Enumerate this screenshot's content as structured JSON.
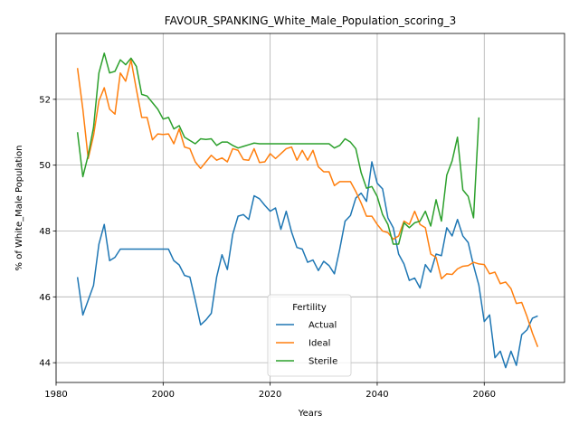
{
  "chart_data": {
    "type": "line",
    "title": "FAVOUR_SPANKING_White_Male_Population_scoring_3",
    "xlabel": "Years",
    "ylabel": "% of White_Male Population",
    "xlim": [
      1980,
      2075
    ],
    "ylim": [
      43.4,
      54.0
    ],
    "xticks": [
      1980,
      2000,
      2020,
      2040,
      2060
    ],
    "yticks": [
      44,
      46,
      48,
      50,
      52
    ],
    "grid": true,
    "legend": {
      "title": "Fertility",
      "placement": "lower-center"
    },
    "x": [
      1984,
      1985,
      1986,
      1987,
      1988,
      1989,
      1990,
      1991,
      1992,
      1993,
      1994,
      1995,
      1996,
      1997,
      1998,
      1999,
      2000,
      2001,
      2002,
      2003,
      2004,
      2005,
      2006,
      2007,
      2008,
      2009,
      2010,
      2011,
      2012,
      2013,
      2014,
      2015,
      2016,
      2017,
      2018,
      2019,
      2020,
      2021,
      2022,
      2023,
      2024,
      2025,
      2026,
      2027,
      2028,
      2029,
      2030,
      2031,
      2032,
      2033,
      2034,
      2035,
      2036,
      2037,
      2038,
      2039,
      2040,
      2041,
      2042,
      2043,
      2044,
      2045,
      2046,
      2047,
      2048,
      2049,
      2050,
      2051,
      2052,
      2053,
      2054,
      2055,
      2056,
      2057,
      2058,
      2059,
      2060,
      2061,
      2062,
      2063,
      2064,
      2065,
      2066,
      2067,
      2068,
      2069,
      2070
    ],
    "series": [
      {
        "name": "Actual",
        "color": "#1f77b4",
        "values": [
          46.6,
          45.45,
          45.9,
          46.35,
          47.6,
          48.2,
          47.1,
          47.2,
          47.45,
          47.45,
          47.45,
          47.45,
          47.45,
          47.45,
          47.45,
          47.45,
          47.45,
          47.45,
          47.1,
          46.97,
          46.65,
          46.6,
          45.9,
          45.15,
          45.3,
          45.5,
          46.6,
          47.28,
          46.83,
          47.9,
          48.45,
          48.5,
          48.35,
          49.07,
          48.98,
          48.78,
          48.6,
          48.7,
          48.05,
          48.6,
          47.97,
          47.5,
          47.45,
          47.05,
          47.12,
          46.8,
          47.08,
          46.95,
          46.7,
          47.45,
          48.3,
          48.47,
          49.0,
          49.15,
          48.9,
          50.1,
          49.45,
          49.28,
          48.4,
          48.1,
          47.3,
          47.0,
          46.5,
          46.57,
          46.27,
          46.98,
          46.75,
          47.3,
          47.25,
          48.1,
          47.85,
          48.35,
          47.85,
          47.65,
          46.95,
          46.35,
          45.25,
          45.45,
          44.15,
          44.35,
          43.85,
          44.35,
          43.92,
          44.85,
          45.0,
          45.35,
          45.42
        ]
      },
      {
        "name": "Ideal",
        "color": "#ff7f0e",
        "values": [
          52.95,
          51.7,
          50.2,
          50.9,
          51.95,
          52.35,
          51.7,
          51.55,
          52.8,
          52.55,
          53.2,
          52.3,
          51.45,
          51.45,
          50.77,
          50.95,
          50.93,
          50.95,
          50.65,
          51.1,
          50.55,
          50.5,
          50.1,
          49.9,
          50.1,
          50.3,
          50.15,
          50.22,
          50.1,
          50.5,
          50.45,
          50.17,
          50.15,
          50.5,
          50.08,
          50.1,
          50.35,
          50.2,
          50.35,
          50.5,
          50.55,
          50.15,
          50.45,
          50.15,
          50.45,
          49.95,
          49.8,
          49.8,
          49.38,
          49.5,
          49.5,
          49.5,
          49.2,
          48.85,
          48.45,
          48.45,
          48.2,
          48.0,
          47.95,
          47.75,
          47.85,
          48.3,
          48.2,
          48.6,
          48.2,
          48.1,
          47.3,
          47.2,
          46.55,
          46.7,
          46.68,
          46.85,
          46.93,
          46.95,
          47.05,
          47.0,
          46.98,
          46.7,
          46.75,
          46.4,
          46.45,
          46.25,
          45.8,
          45.83,
          45.4,
          44.9,
          44.48
        ]
      },
      {
        "name": "Sterile",
        "color": "#2ca02c",
        "values": [
          51.0,
          49.65,
          50.3,
          51.15,
          52.8,
          53.4,
          52.8,
          52.85,
          53.2,
          53.05,
          53.25,
          53.0,
          52.15,
          52.1,
          51.9,
          51.7,
          51.4,
          51.45,
          51.1,
          51.2,
          50.85,
          50.75,
          50.65,
          50.8,
          50.78,
          50.8,
          50.6,
          50.7,
          50.7,
          50.6,
          50.52,
          50.57,
          50.62,
          50.67,
          50.65,
          50.65,
          50.65,
          50.65,
          50.65,
          50.65,
          50.65,
          50.65,
          50.65,
          50.65,
          50.65,
          50.65,
          50.65,
          50.65,
          50.52,
          50.6,
          50.8,
          50.7,
          50.5,
          49.77,
          49.3,
          49.35,
          49.05,
          48.5,
          48.2,
          47.6,
          47.6,
          48.25,
          48.1,
          48.25,
          48.3,
          48.6,
          48.15,
          48.95,
          48.3,
          49.7,
          50.13,
          50.85,
          49.25,
          49.05,
          48.4,
          51.45,
          null,
          null,
          null,
          null,
          null,
          null,
          null,
          null,
          null,
          null,
          null
        ]
      }
    ]
  }
}
